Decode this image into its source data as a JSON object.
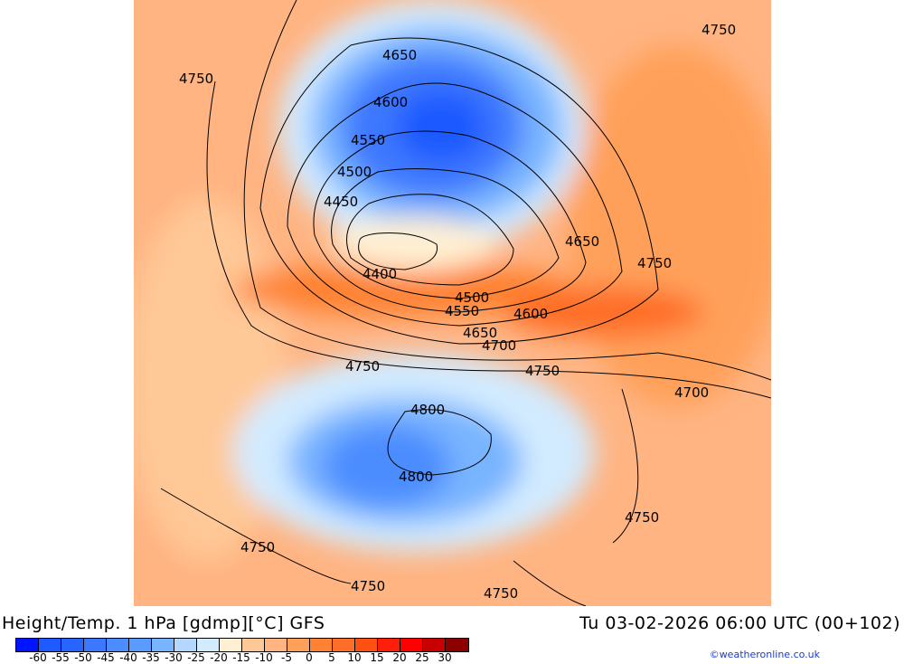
{
  "title": "Height/Temp. 1 hPa [gdmp][°C] GFS",
  "valid_time": "Tu 03-02-2026 06:00 UTC (00+102)",
  "credit": "©weatheronline.co.uk",
  "legend": {
    "colors": [
      "#0014ff",
      "#1e5aff",
      "#2864ff",
      "#3c78ff",
      "#4b8cff",
      "#5a9bff",
      "#78b4ff",
      "#b4d7ff",
      "#d2ebff",
      "#fff0d2",
      "#ffc896",
      "#ffb482",
      "#ffa05a",
      "#ff8232",
      "#ff6e28",
      "#ff5014",
      "#ff1e0a",
      "#ff0000",
      "#c80000",
      "#8c0000"
    ],
    "ticks": [
      "-60",
      "-55",
      "-50",
      "-45",
      "-40",
      "-35",
      "-30",
      "-25",
      "-20",
      "-15",
      "-10",
      "-5",
      "0",
      "5",
      "10",
      "15",
      "20",
      "25",
      "30"
    ]
  },
  "contour_labels": [
    "4750",
    "4750",
    "4650",
    "4600",
    "4550",
    "4500",
    "4450",
    "4400",
    "4650",
    "4750",
    "4500",
    "4550",
    "4600",
    "4650",
    "4700",
    "4750",
    "4750",
    "4700",
    "4800",
    "4800",
    "4750",
    "4750",
    "4750",
    "4750"
  ]
}
